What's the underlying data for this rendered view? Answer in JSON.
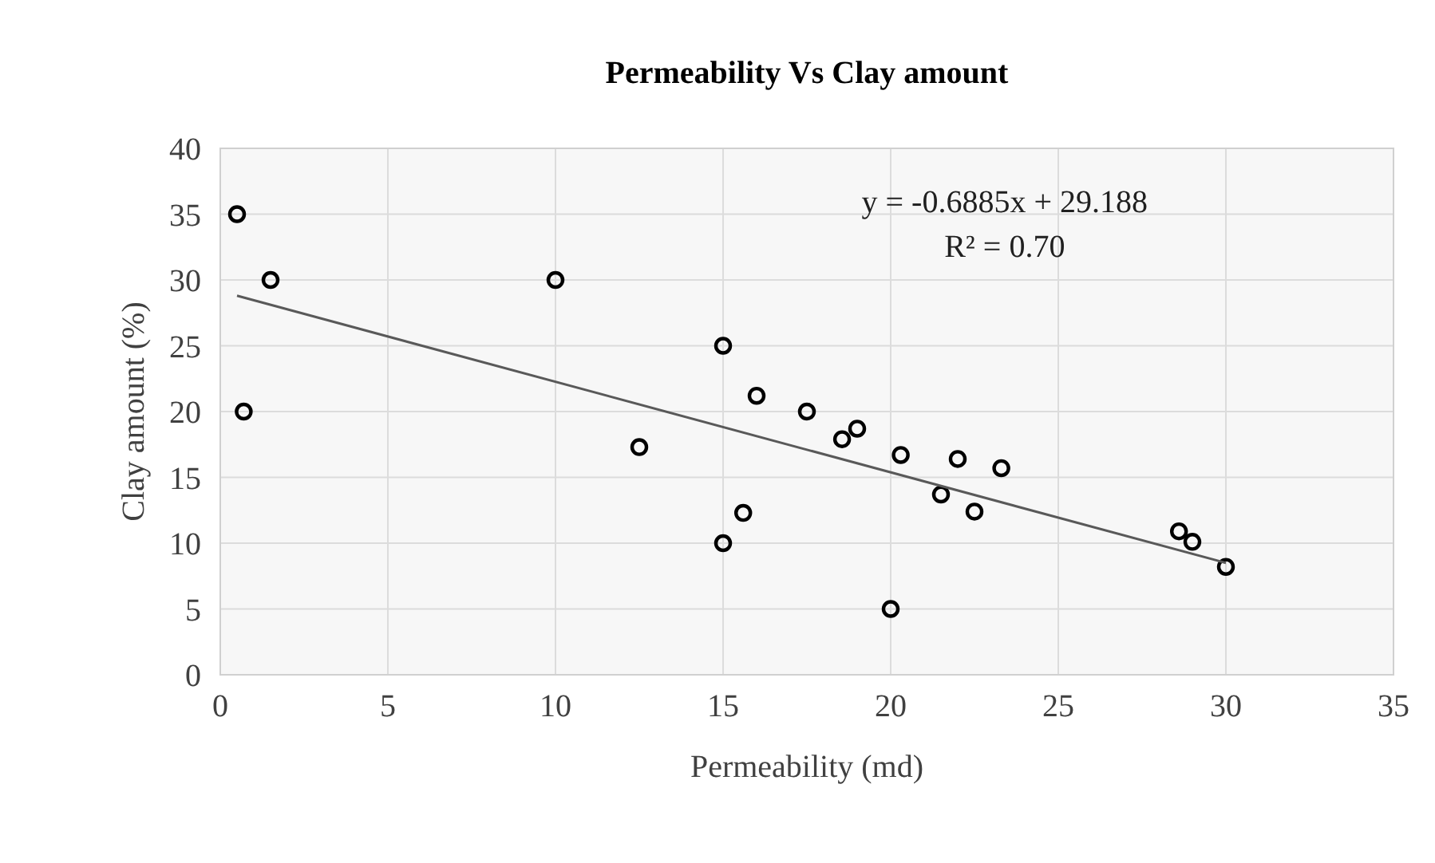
{
  "chart_data": {
    "type": "scatter",
    "title": "Permeability  Vs Clay amount",
    "xlabel": "Permeability (md)",
    "ylabel": "Clay amount (%)",
    "xlim": [
      0,
      35
    ],
    "xticks": [
      0,
      5,
      10,
      15,
      20,
      25,
      30,
      35
    ],
    "ylim": [
      0,
      40
    ],
    "yticks": [
      0,
      5,
      10,
      15,
      20,
      25,
      30,
      35,
      40
    ],
    "grid": true,
    "marker": "circle",
    "annotations": [
      "y = -0.6885x + 29.188",
      "R² = 0.70"
    ],
    "series": [
      {
        "color": "#000000",
        "x": [
          0.5,
          1.5,
          0.7,
          10,
          12.5,
          15,
          16,
          17.5,
          18.55,
          19,
          20.3,
          22,
          23.3,
          21.5,
          22.5,
          15.6,
          15,
          20,
          28.6,
          29,
          30
        ],
        "values": [
          35,
          30,
          20,
          30,
          17.3,
          25,
          21.2,
          20,
          17.9,
          18.7,
          16.7,
          16.4,
          15.7,
          13.7,
          12.4,
          12.3,
          10,
          5,
          10.9,
          10.1,
          8.2
        ]
      },
      {
        "type": "line",
        "color": "#595959",
        "marker": "none",
        "x": [
          0.5,
          30
        ],
        "values": [
          28.8,
          8.5
        ]
      }
    ]
  }
}
